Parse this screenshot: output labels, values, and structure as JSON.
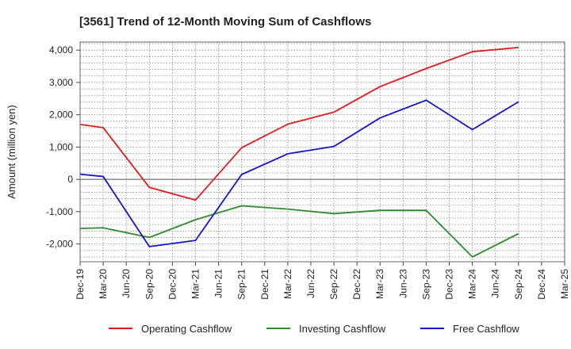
{
  "chart_data": {
    "type": "line",
    "title": "[3561]  Trend of 12-Month Moving Sum of Cashflows",
    "xlabel": "",
    "ylabel": "Amount (million yen)",
    "x": [
      "Dec-19",
      "Mar-20",
      "Jun-20",
      "Sep-20",
      "Dec-20",
      "Mar-21",
      "Jun-21",
      "Sep-21",
      "Dec-21",
      "Mar-22",
      "Jun-22",
      "Sep-22",
      "Dec-22",
      "Mar-23",
      "Jun-23",
      "Sep-23",
      "Dec-23",
      "Mar-24",
      "Jun-24",
      "Sep-24",
      "Dec-24",
      "Mar-25"
    ],
    "ylim": [
      -2550,
      4250
    ],
    "yticks": [
      4000,
      3000,
      2000,
      1000,
      0,
      -1000,
      -2000
    ],
    "ytick_labels": [
      "4,000",
      "3,000",
      "2,000",
      "1,000",
      "0",
      "-1,000",
      "-2,000"
    ],
    "grid": true,
    "legend_position": "bottom",
    "series": [
      {
        "name": "Operating Cashflow",
        "color": "#e41a1c",
        "values": [
          1700,
          1600,
          null,
          -250,
          null,
          -640,
          null,
          980,
          null,
          1710,
          null,
          2080,
          null,
          2870,
          null,
          3430,
          null,
          3950,
          null,
          4080,
          null,
          null
        ]
      },
      {
        "name": "Investing Cashflow",
        "color": "#2e8b2e",
        "values": [
          -1520,
          -1500,
          null,
          -1800,
          null,
          -1250,
          null,
          -820,
          null,
          -920,
          null,
          -1060,
          null,
          -960,
          null,
          -960,
          null,
          -2400,
          null,
          -1680,
          null,
          null
        ]
      },
      {
        "name": "Free Cashflow",
        "color": "#1515cc",
        "values": [
          160,
          90,
          null,
          -2080,
          null,
          -1890,
          null,
          150,
          null,
          790,
          null,
          1020,
          null,
          1900,
          null,
          2450,
          null,
          1540,
          null,
          2400,
          null,
          null
        ]
      }
    ]
  }
}
